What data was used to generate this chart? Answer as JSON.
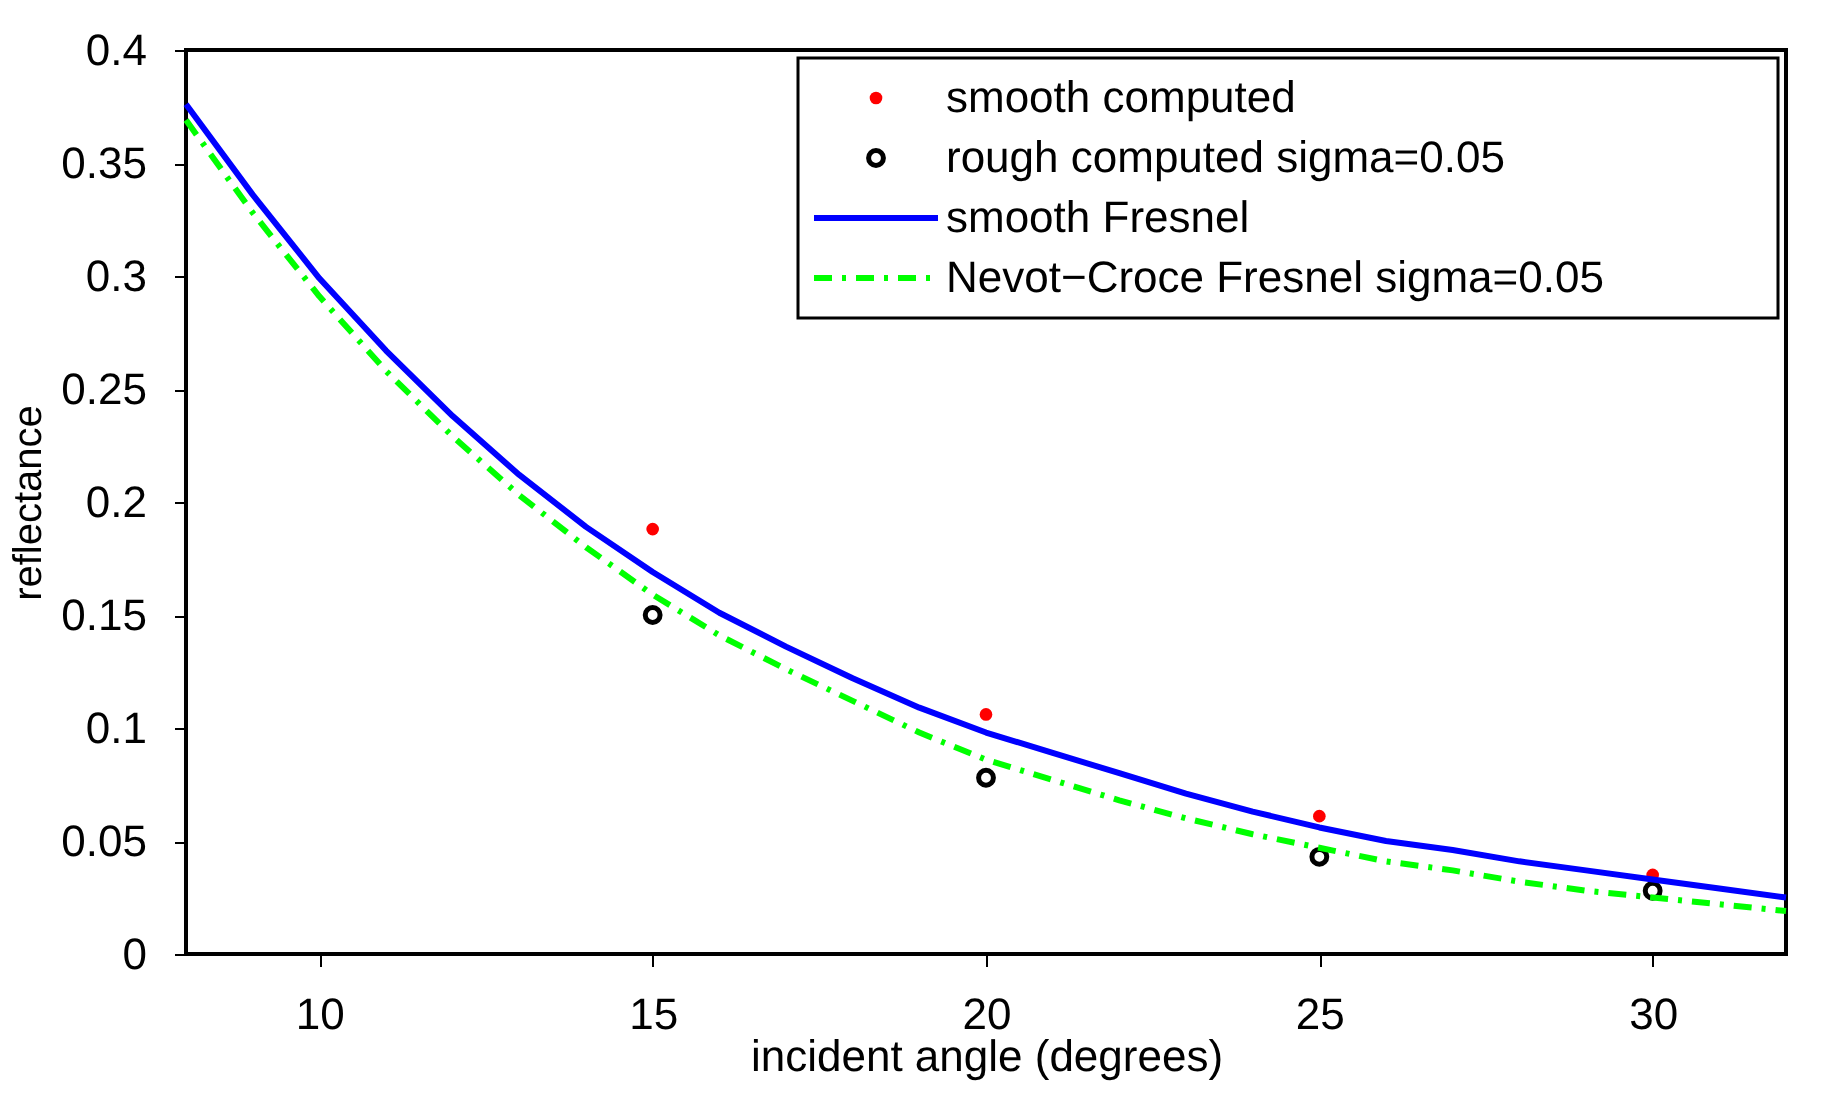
{
  "chart_data": {
    "type": "line",
    "xlabel": "incident angle (degrees)",
    "ylabel": "reflectance",
    "xlim": [
      8,
      32
    ],
    "xticks": [
      10,
      15,
      20,
      25,
      30
    ],
    "ylim": [
      0,
      0.4
    ],
    "yticks": [
      0,
      0.05,
      0.1,
      0.15,
      0.2,
      0.25,
      0.3,
      0.35,
      0.4
    ],
    "grid": false,
    "legend": "top right",
    "series": [
      {
        "name": "smooth computed",
        "type": "scatter",
        "marker": "circle",
        "color": "#ff0000",
        "x": [
          15,
          20,
          25,
          30
        ],
        "values": [
          0.188,
          0.106,
          0.061,
          0.035
        ]
      },
      {
        "name": "rough computed sigma=0.05",
        "type": "scatter",
        "marker": "circle",
        "color": "#000000",
        "x": [
          15,
          20,
          25,
          30
        ],
        "values": [
          0.15,
          0.078,
          0.043,
          0.028
        ]
      },
      {
        "name": "smooth Fresnel",
        "type": "line",
        "line_style": "solid",
        "color": "#0000ff",
        "x": [
          8,
          9,
          10,
          11,
          12,
          13,
          14,
          15,
          16,
          17,
          18,
          19,
          20,
          21,
          22,
          23,
          24,
          25,
          26,
          27,
          28,
          29,
          30,
          31,
          32
        ],
        "values": [
          0.376,
          0.336,
          0.299,
          0.267,
          0.238,
          0.212,
          0.189,
          0.169,
          0.151,
          0.136,
          0.122,
          0.109,
          0.098,
          0.089,
          0.08,
          0.071,
          0.063,
          0.056,
          0.05,
          0.046,
          0.041,
          0.037,
          0.033,
          0.029,
          0.025
        ]
      },
      {
        "name": "Nevot−Croce Fresnel sigma=0.05",
        "type": "line",
        "line_style": "dashed",
        "color": "#00ff00",
        "x": [
          8,
          9,
          10,
          11,
          12,
          13,
          14,
          15,
          16,
          17,
          18,
          19,
          20,
          21,
          22,
          23,
          24,
          25,
          26,
          27,
          28,
          29,
          30,
          31,
          32
        ],
        "values": [
          0.369,
          0.328,
          0.291,
          0.258,
          0.229,
          0.203,
          0.18,
          0.159,
          0.141,
          0.126,
          0.112,
          0.098,
          0.086,
          0.077,
          0.068,
          0.06,
          0.053,
          0.047,
          0.041,
          0.037,
          0.032,
          0.028,
          0.025,
          0.022,
          0.019
        ]
      }
    ]
  }
}
